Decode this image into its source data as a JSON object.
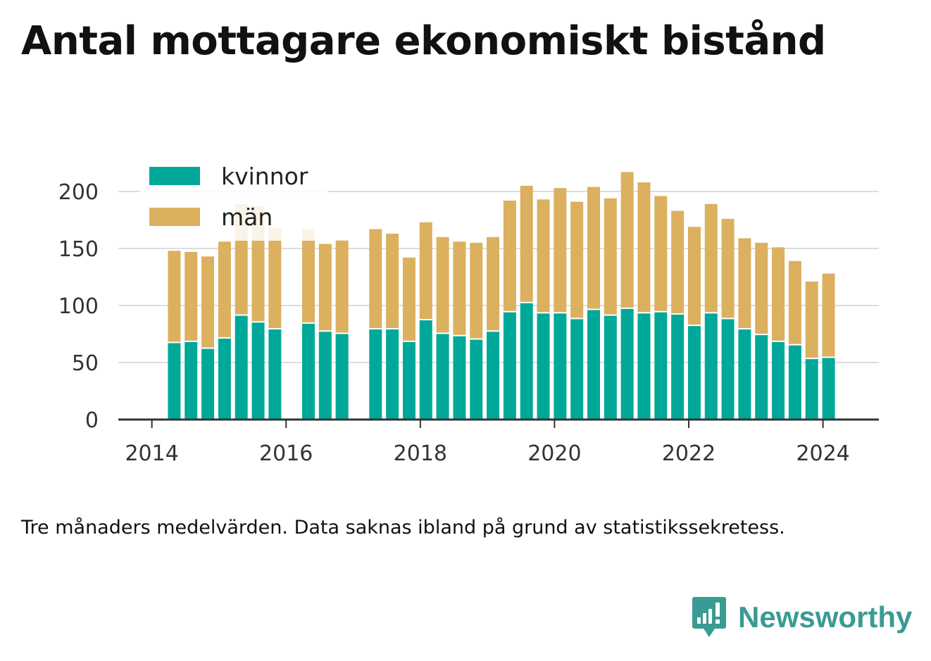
{
  "title": "Antal mottagare ekonomiskt bistånd",
  "note": "Tre månaders medelvärden. Data saknas ibland på grund av statistikssekretess.",
  "brand": {
    "name": "Newsworthy",
    "icon": "newsworthy-logo-icon",
    "color": "#3a9b92"
  },
  "colors": {
    "kvinnor": "#00a89a",
    "man": "#dbb05e",
    "grid": "#dddddd",
    "axis": "#333333"
  },
  "chart_data": {
    "type": "bar",
    "stacked": true,
    "title": "Antal mottagare ekonomiskt bistånd",
    "xlabel": "",
    "ylabel": "",
    "ylim": [
      0,
      225
    ],
    "xlim": [
      "2013-07",
      "2024-11"
    ],
    "y_ticks": [
      0,
      50,
      100,
      150,
      200
    ],
    "x_ticks": [
      {
        "label": "2014",
        "date": "2014-01"
      },
      {
        "label": "2016",
        "date": "2016-01"
      },
      {
        "label": "2018",
        "date": "2018-01"
      },
      {
        "label": "2020",
        "date": "2020-01"
      },
      {
        "label": "2022",
        "date": "2022-01"
      },
      {
        "label": "2024",
        "date": "2024-01"
      }
    ],
    "grid": true,
    "legend_position": "top-left",
    "x": [
      "2014-05",
      "2014-08",
      "2014-11",
      "2015-02",
      "2015-05",
      "2015-08",
      "2015-11",
      "2016-05",
      "2016-08",
      "2016-11",
      "2017-05",
      "2017-08",
      "2017-11",
      "2018-02",
      "2018-05",
      "2018-08",
      "2018-11",
      "2019-02",
      "2019-05",
      "2019-08",
      "2019-11",
      "2020-02",
      "2020-05",
      "2020-08",
      "2020-11",
      "2021-02",
      "2021-05",
      "2021-08",
      "2021-11",
      "2022-02",
      "2022-05",
      "2022-08",
      "2022-11",
      "2023-02",
      "2023-05",
      "2023-08",
      "2023-11",
      "2024-02"
    ],
    "series": [
      {
        "name": "kvinnor",
        "color": "#00a89a",
        "values": [
          67,
          68,
          62,
          71,
          91,
          85,
          79,
          84,
          77,
          75,
          79,
          79,
          68,
          87,
          75,
          73,
          70,
          77,
          94,
          102,
          93,
          93,
          88,
          96,
          91,
          97,
          93,
          94,
          92,
          82,
          93,
          88,
          79,
          74,
          68,
          65,
          53,
          54
        ]
      },
      {
        "name": "män",
        "color": "#dbb05e",
        "values": [
          81,
          79,
          81,
          85,
          98,
          102,
          89,
          83,
          77,
          82,
          88,
          84,
          74,
          86,
          85,
          83,
          85,
          83,
          98,
          103,
          100,
          110,
          103,
          108,
          103,
          120,
          115,
          102,
          91,
          87,
          96,
          88,
          80,
          81,
          83,
          74,
          68,
          74
        ]
      }
    ]
  }
}
